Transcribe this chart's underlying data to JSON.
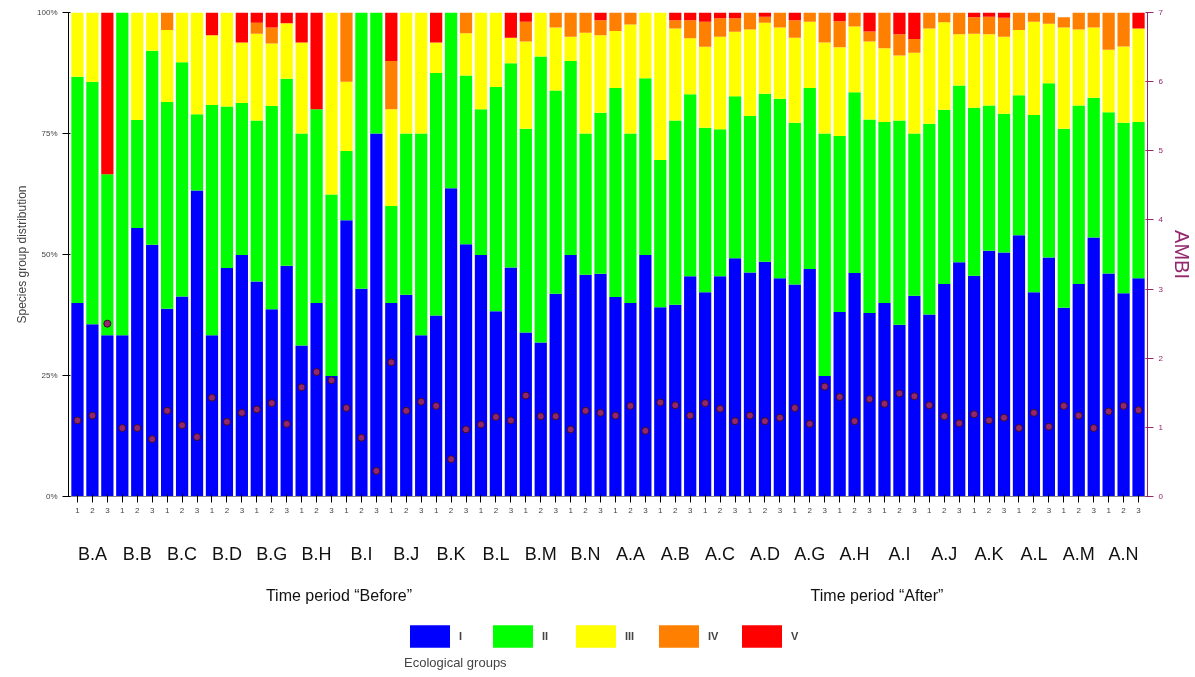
{
  "chart_data": {
    "type": "bar",
    "stacked": true,
    "ylabel": "Species group distribution",
    "y2label": "AMBI",
    "legend_title": "Ecological groups",
    "legend": "bottom",
    "annotations": [
      "B.A",
      "B.B",
      "B.C",
      "B.D",
      "B.G",
      "B.H",
      "B.I",
      "B.J",
      "B.K",
      "B.L",
      "B.M",
      "B.N",
      "A.A",
      "A.B",
      "A.C",
      "A.D",
      "A.G",
      "A.H",
      "A.I",
      "A.J",
      "A.K",
      "A.L",
      "A.M",
      "A.N",
      "Time period “Before”",
      "Time period “After”"
    ],
    "categories": [
      "1",
      "2",
      "3",
      "1",
      "2",
      "3",
      "1",
      "2",
      "3",
      "1",
      "2",
      "3",
      "1",
      "2",
      "3",
      "1",
      "2",
      "3",
      "1",
      "2",
      "3",
      "1",
      "2",
      "3",
      "1",
      "2",
      "3",
      "1",
      "2",
      "3",
      "1",
      "2",
      "3",
      "1",
      "2",
      "3",
      "1",
      "2",
      "3",
      "1",
      "2",
      "3",
      "1",
      "2",
      "3",
      "1",
      "2",
      "3",
      "1",
      "2",
      "3",
      "1",
      "2",
      "3",
      "1",
      "2",
      "3",
      "1",
      "2",
      "3",
      "1",
      "2",
      "3",
      "1",
      "2",
      "3",
      "1",
      "2",
      "3",
      "1",
      "2",
      "3"
    ],
    "ylim": [
      0,
      100
    ],
    "yticks": [
      {
        "value": 0,
        "label": "0%"
      },
      {
        "value": 25,
        "label": "25%"
      },
      {
        "value": 50,
        "label": "50%"
      },
      {
        "value": 75,
        "label": "75%"
      },
      {
        "value": 100,
        "label": "100%"
      }
    ],
    "y2lim": [
      0,
      7
    ],
    "y2ticks": [
      0,
      1,
      2,
      3,
      4,
      5,
      6,
      7
    ],
    "series": [
      {
        "name": "I",
        "color": "#0000ff",
        "values": [
          40.0,
          35.6,
          33.3,
          33.3,
          55.5,
          52.0,
          38.8,
          41.3,
          63.2,
          33.3,
          47.2,
          49.9,
          44.4,
          38.7,
          47.7,
          31.2,
          40.0,
          24.9,
          57.1,
          42.9,
          75.0,
          40.0,
          41.7,
          33.3,
          37.4,
          63.7,
          52.1,
          49.9,
          38.3,
          47.3,
          33.9,
          31.8,
          41.9,
          49.9,
          45.8,
          46.0,
          41.2,
          40.0,
          49.9,
          39.1,
          39.6,
          45.5,
          42.2,
          45.5,
          49.2,
          46.3,
          48.5,
          45.1,
          43.8,
          47.0,
          24.9,
          38.1,
          46.2,
          37.9,
          40.0,
          35.5,
          41.5,
          37.6,
          43.9,
          48.4,
          45.6,
          50.8,
          50.4,
          54.0,
          42.2,
          49.4,
          39.0,
          43.9,
          53.5,
          46.1,
          42.0,
          45.1
        ]
      },
      {
        "name": "II",
        "color": "#00ff00",
        "values": [
          46.7,
          50.1,
          33.3,
          66.7,
          22.3,
          40.1,
          42.7,
          48.4,
          15.8,
          47.6,
          33.4,
          31.4,
          33.3,
          42.0,
          38.6,
          43.8,
          40.0,
          37.5,
          14.3,
          57.1,
          25.0,
          20.0,
          33.3,
          41.7,
          50.1,
          36.3,
          34.9,
          30.1,
          46.3,
          42.2,
          42.1,
          59.1,
          42.0,
          40.1,
          29.2,
          33.3,
          43.2,
          35.0,
          36.5,
          30.4,
          38.1,
          37.6,
          34.0,
          30.4,
          33.5,
          32.3,
          34.7,
          37.1,
          33.4,
          37.4,
          50.1,
          36.4,
          37.3,
          40.0,
          37.4,
          42.2,
          33.5,
          39.4,
          36.0,
          36.5,
          34.7,
          30.0,
          28.7,
          28.9,
          36.6,
          36.0,
          37.0,
          36.9,
          28.9,
          33.3,
          35.2,
          32.3
        ]
      },
      {
        "name": "III",
        "color": "#ffff00",
        "values": [
          13.3,
          14.3,
          0,
          0,
          22.2,
          7.9,
          14.9,
          10.3,
          21.0,
          14.4,
          19.4,
          12.5,
          17.9,
          12.9,
          11.5,
          18.8,
          0,
          37.6,
          14.3,
          0,
          0,
          20.0,
          25.0,
          25.0,
          6.3,
          0,
          8.7,
          20.0,
          15.4,
          5.3,
          18.0,
          9.1,
          13.0,
          5.0,
          20.8,
          16.0,
          11.8,
          22.5,
          13.6,
          30.5,
          19.0,
          11.6,
          16.7,
          19.1,
          13.3,
          17.9,
          14.7,
          14.7,
          17.6,
          13.7,
          18.8,
          18.3,
          13.6,
          16.1,
          15.2,
          13.4,
          16.7,
          19.7,
          18.1,
          10.6,
          15.3,
          14.7,
          15.9,
          13.5,
          19.3,
          12.3,
          20.9,
          15.7,
          14.5,
          12.9,
          15.8,
          19.3
        ]
      },
      {
        "name": "IV",
        "color": "#ff8000",
        "values": [
          0,
          0,
          0,
          0,
          0,
          0,
          3.6,
          0,
          0,
          0,
          0,
          0,
          2.3,
          3.3,
          0,
          0,
          0,
          0,
          14.3,
          0,
          0,
          10.0,
          0,
          0,
          0,
          0,
          4.3,
          0,
          0,
          0,
          4.1,
          0,
          3.1,
          5.0,
          4.2,
          3.1,
          3.8,
          2.5,
          0,
          0,
          1.7,
          3.7,
          5.2,
          3.8,
          2.8,
          3.5,
          1.2,
          3.1,
          3.6,
          1.9,
          6.2,
          5.4,
          2.9,
          2.1,
          7.4,
          4.4,
          2.8,
          3.3,
          2.0,
          4.5,
          3.4,
          3.6,
          3.9,
          3.6,
          1.9,
          2.3,
          2.1,
          3.5,
          3.1,
          7.7,
          7.0,
          0
        ]
      },
      {
        "name": "V",
        "color": "#ff0000",
        "values": [
          0,
          0,
          33.4,
          0,
          0,
          0,
          0,
          0,
          0,
          4.7,
          0,
          6.2,
          2.1,
          3.1,
          2.2,
          6.2,
          20.0,
          0,
          0,
          0,
          0,
          10.0,
          0,
          0,
          6.2,
          0,
          0,
          0,
          0,
          5.2,
          1.9,
          0,
          0,
          0,
          0,
          1.6,
          0,
          0,
          0,
          0,
          1.6,
          1.6,
          1.9,
          1.2,
          1.2,
          0,
          0.9,
          0,
          1.6,
          0,
          0,
          1.8,
          0,
          3.9,
          0,
          4.5,
          5.5,
          0,
          0,
          0,
          1.0,
          0.9,
          1.1,
          0,
          0,
          0,
          0,
          0,
          0,
          0,
          0,
          3.3
        ]
      },
      {
        "type": "scatter",
        "axis": "y2",
        "marker": "circle",
        "color": "#93276e",
        "values": [
          1.1,
          1.17,
          2.5,
          0.99,
          0.99,
          0.83,
          1.24,
          1.03,
          0.86,
          1.43,
          1.08,
          1.21,
          1.26,
          1.35,
          1.05,
          1.58,
          1.8,
          1.68,
          1.28,
          0.85,
          0.37,
          1.94,
          1.24,
          1.37,
          1.31,
          0.54,
          0.97,
          1.04,
          1.15,
          1.1,
          1.46,
          1.16,
          1.16,
          0.97,
          1.24,
          1.21,
          1.17,
          1.31,
          0.95,
          1.36,
          1.32,
          1.17,
          1.35,
          1.27,
          1.09,
          1.17,
          1.09,
          1.14,
          1.28,
          1.05,
          1.59,
          1.44,
          1.09,
          1.41,
          1.34,
          1.49,
          1.45,
          1.32,
          1.16,
          1.06,
          1.19,
          1.1,
          1.14,
          0.99,
          1.21,
          1.01,
          1.31,
          1.17,
          0.99,
          1.23,
          1.31,
          1.25
        ]
      }
    ]
  }
}
